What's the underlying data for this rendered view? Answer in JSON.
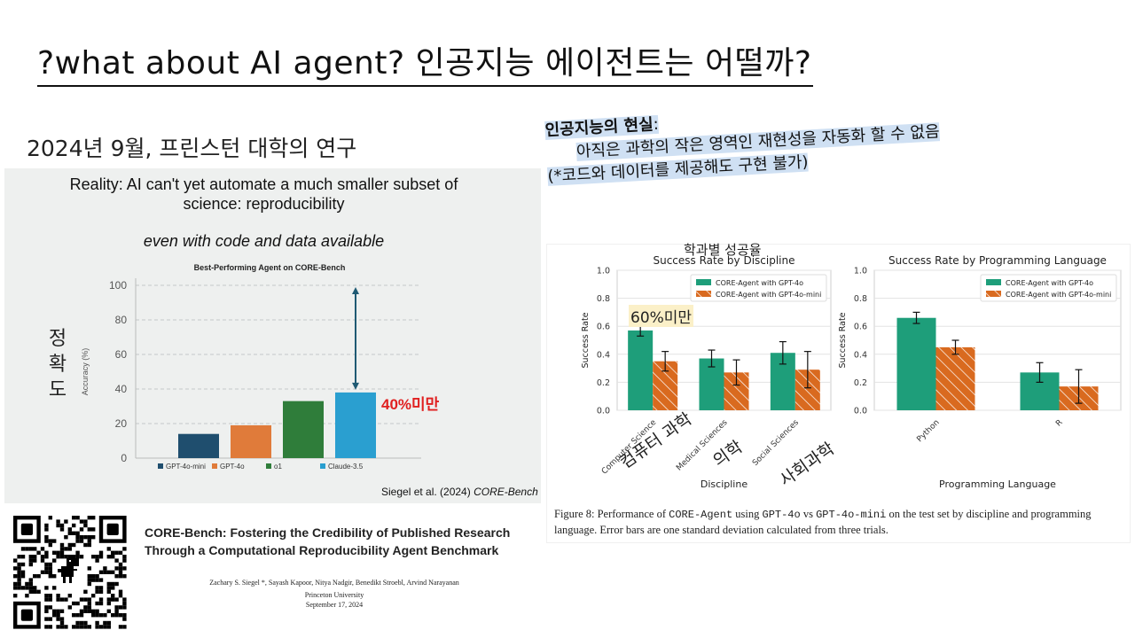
{
  "slide": {
    "title": "?what about AI agent?  인공지능 에이전트는 어떨까?",
    "subtitle": "2024년 9월, 프린스턴 대학의 연구"
  },
  "left_panel": {
    "reality_line1": "Reality: AI can't yet automate a much smaller subset of",
    "reality_line2": "science: reproducibility",
    "reality_italic": "even with code and data available",
    "accuracy_kr": [
      "정",
      "확",
      "도"
    ],
    "annotation": "40%미만",
    "citation_prefix": "Siegel et al. (2024) ",
    "citation_italic": "CORE-Bench"
  },
  "paper": {
    "title_line1": "CORE-Bench:  Fostering the Credibility of Published Research",
    "title_line2": "Through a Computational Reproducibility Agent Benchmark",
    "authors": "Zachary S. Siegel *, Sayash Kapoor, Nitya Nadgir, Benedikt Stroebl, Arvind Narayanan",
    "university": "Princeton University",
    "date": "September 17, 2024"
  },
  "note": {
    "head": "인공지능의 현실",
    "head_colon": ":",
    "line2": "아직은 과학의 작은 영역인  재현성을 자동화 할 수 없음",
    "line3": "(*코드와 데이터를 제공해도 구현 불가)"
  },
  "right_panel": {
    "annot_top": "학과별 성공율",
    "annot_60": "60%미만",
    "annot_cs": "컴퓨터 과학",
    "annot_med": "의학",
    "annot_soc": "사회과학",
    "caption_parts": [
      "Figure 8:  Performance of ",
      "CORE-Agent",
      " using ",
      "GPT-4o",
      " vs ",
      "GPT-4o-mini",
      " on the test set by discipline and programming language. Error bars are one standard deviation calculated from three trials."
    ]
  },
  "colors": {
    "teal": "#1e9e7a",
    "orange": "#d96a1f",
    "bar_navy": "#1f4e6e",
    "bar_orange": "#e07b3a",
    "bar_green": "#2f7d3a",
    "bar_blue": "#2a9fd0",
    "arrow": "#1f5a73",
    "annot_red": "#e02020",
    "highlight": "#cfe0f3"
  },
  "chart_data": [
    {
      "type": "bar",
      "title": "Best-Performing Agent on CORE-Bench",
      "xlabel": "",
      "ylabel": "Accuracy (%)",
      "ylim": [
        0,
        100
      ],
      "yticks": [
        0,
        20,
        40,
        60,
        80,
        100
      ],
      "grid": true,
      "categories": [
        "GPT-4o-mini",
        "GPT-4o",
        "o1",
        "Claude-3.5"
      ],
      "values": [
        14,
        19,
        33,
        38
      ],
      "colors": [
        "#1f4e6e",
        "#e07b3a",
        "#2f7d3a",
        "#2a9fd0"
      ],
      "legend_position": "bottom",
      "arrow": {
        "from": 38,
        "to": 100
      }
    },
    {
      "type": "bar",
      "title": "Success Rate by Discipline",
      "xlabel": "Discipline",
      "ylabel": "Success Rate",
      "ylim": [
        0,
        1.0
      ],
      "yticks": [
        0.0,
        0.2,
        0.4,
        0.6,
        0.8,
        1.0
      ],
      "grid": true,
      "legend_position": "top-right",
      "categories": [
        "Computer Science",
        "Medical Sciences",
        "Social Sciences"
      ],
      "series": [
        {
          "name": "CORE-Agent with GPT-4o",
          "values": [
            0.57,
            0.37,
            0.41
          ],
          "errors": [
            0.04,
            0.06,
            0.08
          ]
        },
        {
          "name": "CORE-Agent with GPT-4o-mini",
          "values": [
            0.35,
            0.27,
            0.29
          ],
          "errors": [
            0.07,
            0.09,
            0.13
          ]
        }
      ]
    },
    {
      "type": "bar",
      "title": "Success Rate by Programming Language",
      "xlabel": "Programming Language",
      "ylabel": "Success Rate",
      "ylim": [
        0,
        1.0
      ],
      "yticks": [
        0.0,
        0.2,
        0.4,
        0.6,
        0.8,
        1.0
      ],
      "grid": true,
      "legend_position": "top-right",
      "categories": [
        "Python",
        "R"
      ],
      "series": [
        {
          "name": "CORE-Agent with GPT-4o",
          "values": [
            0.66,
            0.27
          ],
          "errors": [
            0.04,
            0.07
          ]
        },
        {
          "name": "CORE-Agent with GPT-4o-mini",
          "values": [
            0.45,
            0.17
          ],
          "errors": [
            0.05,
            0.12
          ]
        }
      ]
    }
  ]
}
